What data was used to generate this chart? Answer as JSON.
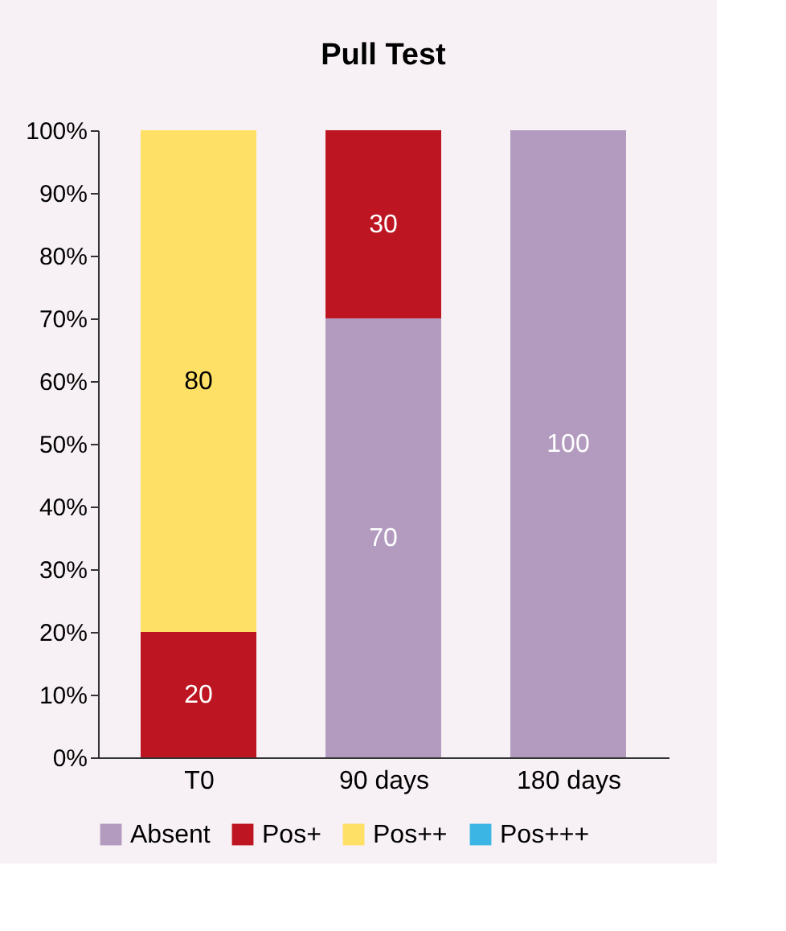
{
  "chart_data": {
    "type": "bar",
    "title": "Pull Test",
    "stacked": true,
    "categories": [
      "T0",
      "90 days",
      "180 days"
    ],
    "series": [
      {
        "name": "Absent",
        "color": "#b39bc0",
        "values": [
          0,
          70,
          100
        ],
        "value_labels": [
          null,
          "70",
          "100"
        ]
      },
      {
        "name": "Pos+",
        "color": "#bd1622",
        "values": [
          20,
          30,
          0
        ],
        "value_labels": [
          "20",
          "30",
          null
        ]
      },
      {
        "name": "Pos++",
        "color": "#ffe066",
        "values": [
          80,
          0,
          0
        ],
        "value_labels": [
          "80",
          null,
          null
        ]
      },
      {
        "name": "Pos+++",
        "color": "#3bb6e4",
        "values": [
          0,
          0,
          0
        ],
        "value_labels": [
          null,
          null,
          null
        ]
      }
    ],
    "ylim": [
      0,
      100
    ],
    "yticks": [
      {
        "value": 0,
        "label": "0%"
      },
      {
        "value": 10,
        "label": "10%"
      },
      {
        "value": 20,
        "label": "20%"
      },
      {
        "value": 30,
        "label": "30%"
      },
      {
        "value": 40,
        "label": "40%"
      },
      {
        "value": 50,
        "label": "50%"
      },
      {
        "value": 60,
        "label": "60%"
      },
      {
        "value": 70,
        "label": "70%"
      },
      {
        "value": 80,
        "label": "80%"
      },
      {
        "value": 90,
        "label": "90%"
      },
      {
        "value": 100,
        "label": "100%"
      }
    ],
    "grid": false,
    "legend": "bottom"
  }
}
